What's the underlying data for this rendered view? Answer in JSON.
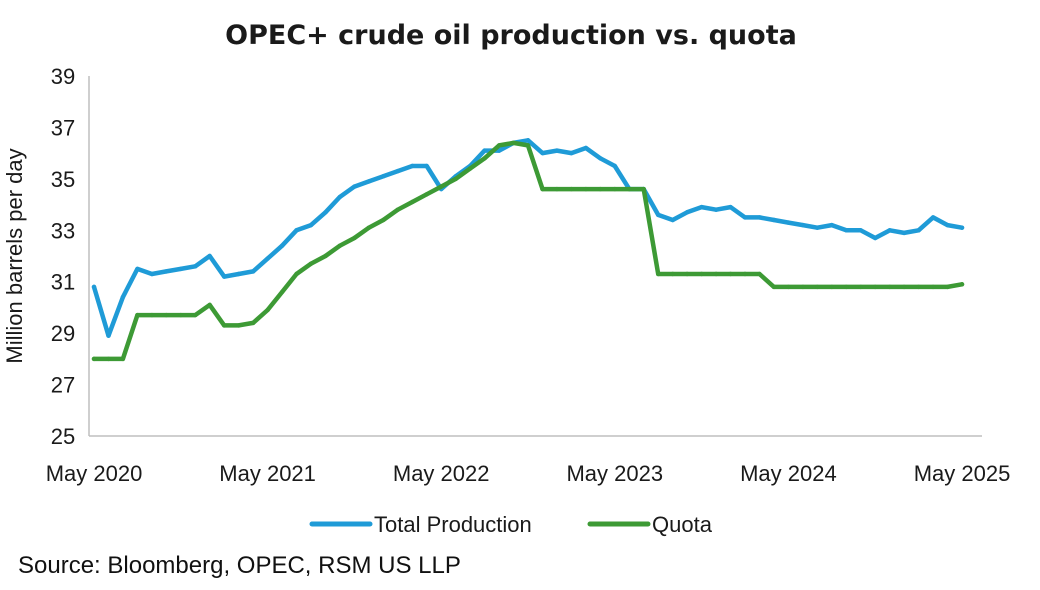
{
  "chart_data": {
    "type": "line",
    "title": "OPEC+ crude oil production vs. quota",
    "ylabel": "Million barrels per day",
    "xlabel": "",
    "ylim": [
      25,
      39
    ],
    "yticks": [
      "25",
      "27",
      "29",
      "31",
      "33",
      "35",
      "37",
      "39"
    ],
    "xticks": [
      "May 2020",
      "May 2021",
      "May 2022",
      "May 2023",
      "May 2024",
      "May 2025"
    ],
    "x_start": "May 2020",
    "x_end": "May 2025",
    "grid": false,
    "legend_position": "bottom",
    "series": [
      {
        "name": "Total Production",
        "color": "#1f9bd7",
        "values": [
          30.8,
          28.9,
          30.4,
          31.5,
          31.3,
          31.4,
          31.5,
          31.6,
          32.0,
          31.2,
          31.3,
          31.4,
          31.9,
          32.4,
          33.0,
          33.2,
          33.7,
          34.3,
          34.7,
          34.9,
          35.1,
          35.3,
          35.5,
          35.5,
          34.6,
          35.1,
          35.5,
          36.1,
          36.1,
          36.4,
          36.5,
          36.0,
          36.1,
          36.0,
          36.2,
          35.8,
          35.5,
          34.6,
          34.6,
          33.6,
          33.4,
          33.7,
          33.9,
          33.8,
          33.9,
          33.5,
          33.5,
          33.4,
          33.3,
          33.2,
          33.1,
          33.2,
          33.0,
          33.0,
          32.7,
          33.0,
          32.9,
          33.0,
          33.5,
          33.2,
          33.1
        ]
      },
      {
        "name": "Quota",
        "color": "#3d9a35",
        "values": [
          28.0,
          28.0,
          28.0,
          29.7,
          29.7,
          29.7,
          29.7,
          29.7,
          30.1,
          29.3,
          29.3,
          29.4,
          29.9,
          30.6,
          31.3,
          31.7,
          32.0,
          32.4,
          32.7,
          33.1,
          33.4,
          33.8,
          34.1,
          34.4,
          34.7,
          35.0,
          35.4,
          35.8,
          36.3,
          36.4,
          36.3,
          34.6,
          34.6,
          34.6,
          34.6,
          34.6,
          34.6,
          34.6,
          34.6,
          31.3,
          31.3,
          31.3,
          31.3,
          31.3,
          31.3,
          31.3,
          31.3,
          30.8,
          30.8,
          30.8,
          30.8,
          30.8,
          30.8,
          30.8,
          30.8,
          30.8,
          30.8,
          30.8,
          30.8,
          30.8,
          30.9
        ]
      }
    ]
  },
  "source": "Source: Bloomberg, OPEC, RSM US LLP"
}
